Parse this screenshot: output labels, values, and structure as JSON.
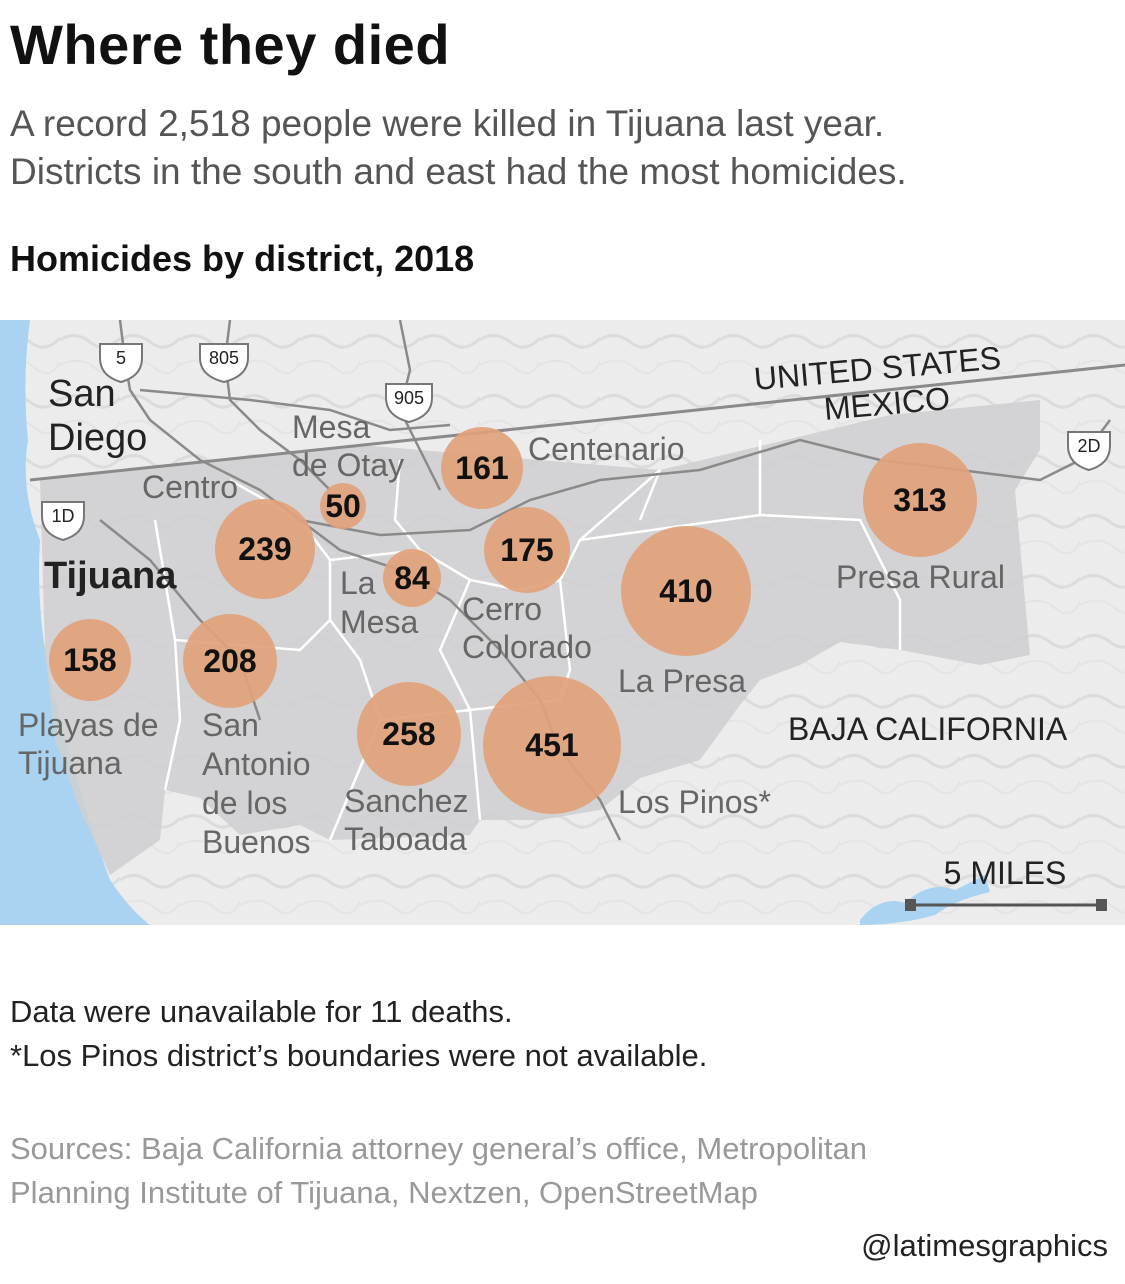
{
  "header": {
    "title": "Where they died",
    "subtitle_lines": [
      "A record 2,518 people were killed in Tijuana last year.",
      "Districts in the south and east had the most homicides."
    ],
    "chart_title": "Homicides by district, 2018"
  },
  "map": {
    "country_labels": {
      "us": "UNITED STATES",
      "mexico": "MEXICO"
    },
    "region_label": "BAJA CALIFORNIA",
    "city_labels": {
      "san_diego_1": "San",
      "san_diego_2": "Diego",
      "tijuana": "Tijuana"
    },
    "highways": [
      "5",
      "805",
      "905",
      "1D",
      "2D"
    ],
    "scale_label": "5 MILES",
    "colors": {
      "bubble": "#e0a27a",
      "district": "#cfcfd1",
      "water": "#a9d3f0",
      "terrain": "#eeeeee"
    },
    "districts": [
      {
        "name": "Playas de Tijuana",
        "label_lines": [
          "Playas de",
          "Tijuana"
        ],
        "homicides": 158
      },
      {
        "name": "San Antonio de los Buenos",
        "label_lines": [
          "San",
          "Antonio",
          "de los",
          "Buenos"
        ],
        "homicides": 208
      },
      {
        "name": "Centro",
        "label_lines": [
          "Centro"
        ],
        "homicides": 239
      },
      {
        "name": "Mesa de Otay",
        "label_lines": [
          "Mesa",
          "de Otay"
        ],
        "homicides": 50
      },
      {
        "name": "Centenario",
        "label_lines": [
          "Centenario"
        ],
        "homicides": 161
      },
      {
        "name": "La Mesa",
        "label_lines": [
          "La",
          "Mesa"
        ],
        "homicides": 84
      },
      {
        "name": "Cerro Colorado",
        "label_lines": [
          "Cerro",
          "Colorado"
        ],
        "homicides": 175
      },
      {
        "name": "La Presa",
        "label_lines": [
          "La Presa"
        ],
        "homicides": 410
      },
      {
        "name": "Presa Rural",
        "label_lines": [
          "Presa Rural"
        ],
        "homicides": 313
      },
      {
        "name": "Sanchez Taboada",
        "label_lines": [
          "Sanchez",
          "Taboada"
        ],
        "homicides": 258
      },
      {
        "name": "Los Pinos*",
        "label_lines": [
          "Los Pinos*"
        ],
        "homicides": 451
      }
    ]
  },
  "notes": [
    "Data were unavailable for 11 deaths.",
    "*Los Pinos district’s boundaries were not available."
  ],
  "sources": [
    "Sources: Baja California attorney general’s office, Metropolitan",
    "Planning Institute of Tijuana, Nextzen, OpenStreetMap"
  ],
  "credit": "@latimesgraphics"
}
